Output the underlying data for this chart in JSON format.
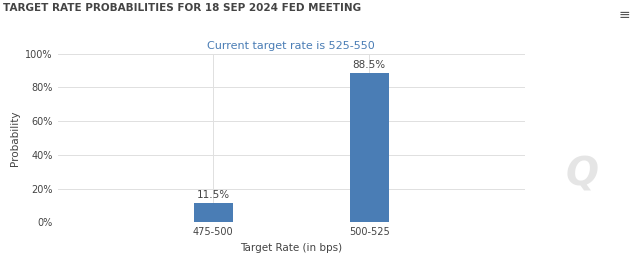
{
  "title": "TARGET RATE PROBABILITIES FOR 18 SEP 2024 FED MEETING",
  "subtitle": "Current target rate is 525-550",
  "categories": [
    "475-500",
    "500-525"
  ],
  "values": [
    11.5,
    88.5
  ],
  "bar_color": "#4a7db5",
  "ylabel": "Probability",
  "xlabel": "Target Rate (in bps)",
  "ylim": [
    0,
    100
  ],
  "ytick_labels": [
    "0%",
    "20%",
    "40%",
    "60%",
    "80%",
    "100%"
  ],
  "ytick_values": [
    0,
    20,
    40,
    60,
    80,
    100
  ],
  "title_color": "#444444",
  "subtitle_color": "#4a7db5",
  "background_color": "#ffffff",
  "grid_color": "#e0e0e0",
  "bar_labels": [
    "11.5%",
    "88.5%"
  ],
  "title_fontsize": 7.5,
  "subtitle_fontsize": 8.0,
  "label_fontsize": 7.5,
  "tick_fontsize": 7.0,
  "axis_label_fontsize": 7.5,
  "bar_width": 0.25,
  "xlim": [
    -0.5,
    2.5
  ],
  "bar_positions": [
    0.5,
    1.5
  ]
}
